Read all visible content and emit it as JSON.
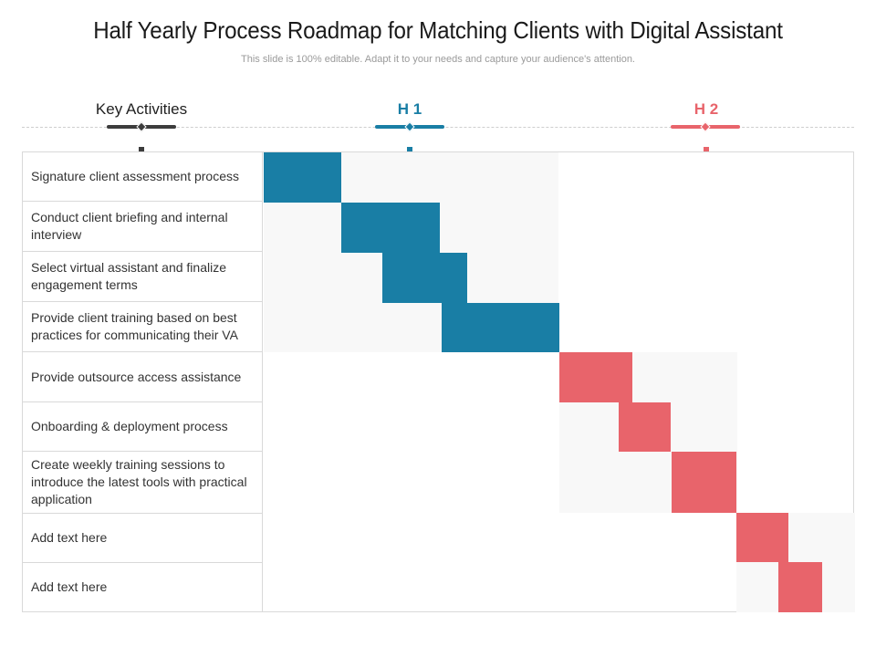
{
  "title": "Half Yearly Process Roadmap for Matching Clients with Digital Assistant",
  "subtitle": "This slide is 100% editable. Adapt it to your needs and capture your audience's attention.",
  "headers": {
    "key_activities": "Key Activities",
    "h1": "H 1",
    "h2": "H 2"
  },
  "colors": {
    "h1": "#197ea5",
    "h2": "#e8646b",
    "shade": "#f8f8f8"
  },
  "activities": [
    "Signature client assessment process",
    "Conduct client briefing and internal interview",
    "Select virtual assistant and finalize engagement terms",
    "Provide client training based on best practices for communicating their VA",
    "Provide outsource access assistance",
    "Onboarding & deployment process",
    "Create weekly training sessions to introduce the latest tools with practical application",
    "Add text here",
    "Add text here"
  ]
}
